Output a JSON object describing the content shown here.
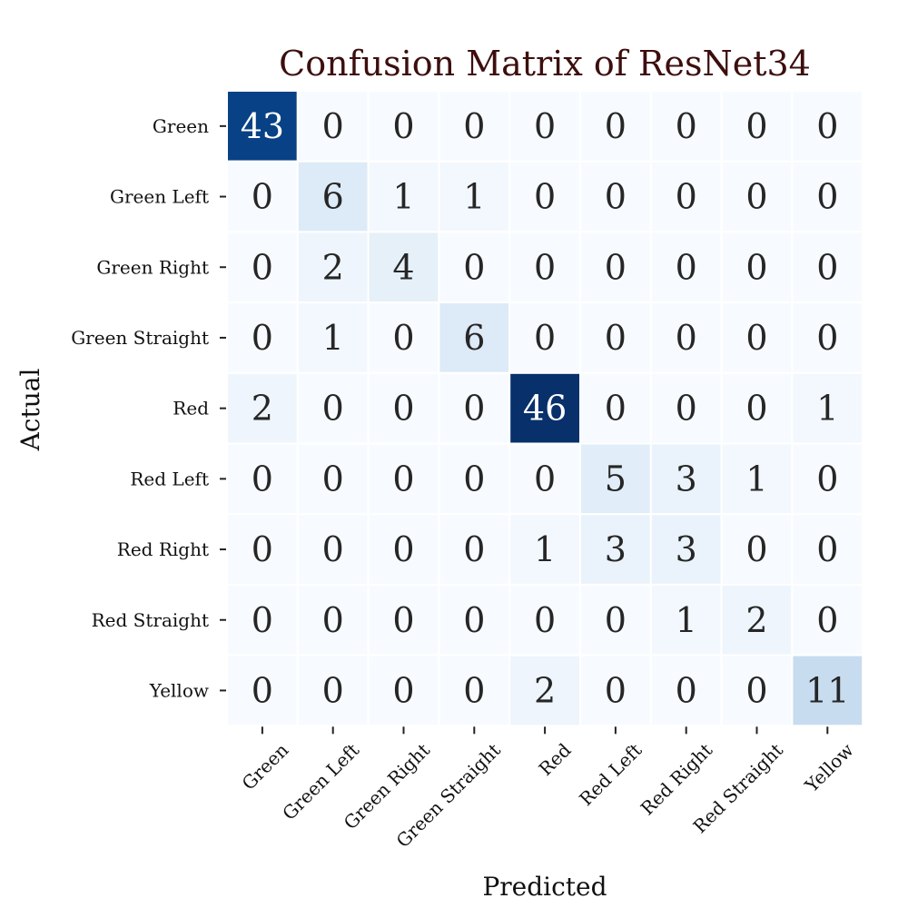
{
  "chart_data": {
    "type": "heatmap",
    "title": "Confusion Matrix of ResNet34",
    "xlabel": "Predicted",
    "ylabel": "Actual",
    "x_categories": [
      "Green",
      "Green Left",
      "Green Right",
      "Green Straight",
      "Red",
      "Red Left",
      "Red Right",
      "Red Straight",
      "Yellow"
    ],
    "y_categories": [
      "Green",
      "Green Left",
      "Green Right",
      "Green Straight",
      "Red",
      "Red Left",
      "Red Right",
      "Red Straight",
      "Yellow"
    ],
    "values": [
      [
        43,
        0,
        0,
        0,
        0,
        0,
        0,
        0,
        0
      ],
      [
        0,
        6,
        1,
        1,
        0,
        0,
        0,
        0,
        0
      ],
      [
        0,
        2,
        4,
        0,
        0,
        0,
        0,
        0,
        0
      ],
      [
        0,
        1,
        0,
        6,
        0,
        0,
        0,
        0,
        0
      ],
      [
        2,
        0,
        0,
        0,
        46,
        0,
        0,
        0,
        1
      ],
      [
        0,
        0,
        0,
        0,
        0,
        5,
        3,
        1,
        0
      ],
      [
        0,
        0,
        0,
        0,
        1,
        3,
        3,
        0,
        0
      ],
      [
        0,
        0,
        0,
        0,
        0,
        0,
        1,
        2,
        0
      ],
      [
        0,
        0,
        0,
        0,
        2,
        0,
        0,
        0,
        11
      ]
    ],
    "color_scale": "Blues",
    "colorbar": false,
    "grid": false,
    "title_color": "#3d0e0e"
  }
}
